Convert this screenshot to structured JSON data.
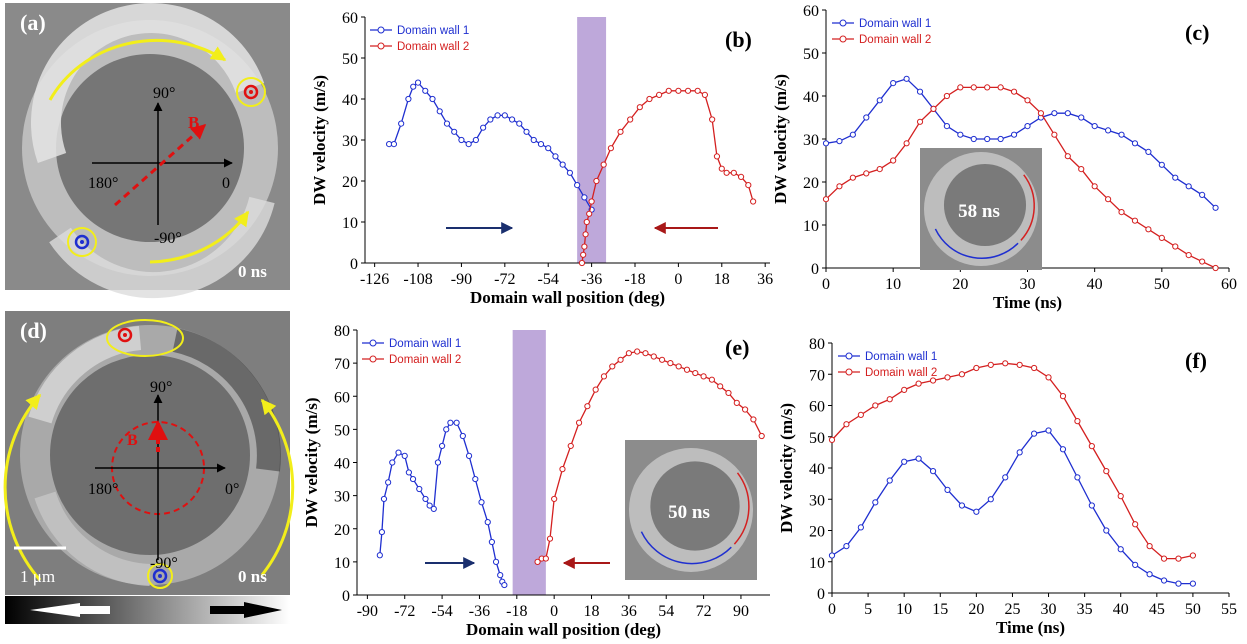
{
  "colors": {
    "dw1": "#1f2fd0",
    "dw2": "#d42020",
    "highlight": "#b79fd6",
    "arrow_right": "#1a2f6e",
    "arrow_left": "#a81818",
    "yellow": "#f2ee1a",
    "B_red": "#e01010"
  },
  "panel_a": {
    "label": "(a)",
    "time": "0 ns",
    "angle_90": "90°",
    "angle_0": "0",
    "angle_180": "180°",
    "angle_m90": "-90°",
    "field": "B",
    "icons": [
      "domain-wall-red-marker",
      "domain-wall-blue-marker",
      "yellow-motion-arrow"
    ]
  },
  "panel_d": {
    "label": "(d)",
    "time": "0 ns",
    "angle_90": "90°",
    "angle_0": "0°",
    "angle_180": "180°",
    "angle_m90": "-90°",
    "field": "B",
    "scale": "1 μm",
    "icons": [
      "domain-wall-red-marker",
      "domain-wall-blue-marker",
      "yellow-motion-arrow",
      "field-direction-arrows"
    ]
  },
  "chart_data": [
    {
      "id": "b",
      "label": "(b)",
      "type": "line",
      "xlabel": "Domain wall position (deg)",
      "ylabel": "DW velocity (m/s)",
      "xlim": [
        -130,
        38
      ],
      "ylim": [
        0,
        60
      ],
      "xticks": [
        -126,
        -108,
        -90,
        -72,
        -54,
        -36,
        -18,
        0,
        18,
        36
      ],
      "yticks": [
        0,
        10,
        20,
        30,
        40,
        50,
        60
      ],
      "highlight": [
        -42,
        -30
      ],
      "arrows": [
        "right",
        "left"
      ],
      "series": [
        {
          "name": "Domain wall 1",
          "color": "#1f2fd0",
          "x": [
            -120,
            -118,
            -115,
            -112,
            -110,
            -108,
            -105,
            -102,
            -99,
            -96,
            -93,
            -90,
            -87,
            -84,
            -81,
            -78,
            -75,
            -72,
            -69,
            -66,
            -63,
            -60,
            -57,
            -54,
            -51,
            -48,
            -45,
            -42,
            -39,
            -36
          ],
          "y": [
            29,
            29,
            34,
            40,
            43,
            44,
            42,
            40,
            37,
            34,
            32,
            30,
            29,
            30,
            33,
            35,
            36,
            36,
            35,
            34,
            32,
            30,
            29,
            28,
            26,
            24,
            22,
            19,
            16,
            13
          ]
        },
        {
          "name": "Domain wall 2",
          "color": "#d42020",
          "x": [
            -40,
            -39.5,
            -39,
            -38.5,
            -38,
            -37,
            -36,
            -34,
            -31,
            -28,
            -24,
            -20,
            -16,
            -12,
            -8,
            -4,
            0,
            4,
            8,
            11,
            14,
            16,
            18,
            20,
            23,
            26,
            29,
            31
          ],
          "y": [
            0,
            2,
            4,
            7,
            10,
            12,
            15,
            20,
            24,
            28,
            32,
            35,
            38,
            40,
            41,
            42,
            42,
            42,
            42,
            41,
            35,
            26,
            23,
            22,
            22,
            21,
            19,
            15
          ]
        }
      ]
    },
    {
      "id": "c",
      "label": "(c)",
      "type": "line",
      "xlabel": "Time (ns)",
      "ylabel": "DW velocity (m/s)",
      "xlim": [
        0,
        60
      ],
      "ylim": [
        0,
        60
      ],
      "xticks": [
        0,
        10,
        20,
        30,
        40,
        50,
        60
      ],
      "yticks": [
        0,
        10,
        20,
        30,
        40,
        50,
        60
      ],
      "inset": {
        "text": "58 ns"
      },
      "series": [
        {
          "name": "Domain wall 1",
          "color": "#1f2fd0",
          "x": [
            0,
            2,
            4,
            6,
            8,
            10,
            12,
            14,
            16,
            18,
            20,
            22,
            24,
            26,
            28,
            30,
            32,
            34,
            36,
            38,
            40,
            42,
            44,
            46,
            48,
            50,
            52,
            54,
            56,
            58
          ],
          "y": [
            29,
            29.5,
            31,
            35,
            39,
            43,
            44,
            41,
            37,
            33,
            31,
            30,
            30,
            30,
            31,
            33,
            35,
            36,
            36,
            35,
            33,
            32,
            31,
            29,
            27,
            24,
            21,
            19,
            17,
            14
          ]
        },
        {
          "name": "Domain wall 2",
          "color": "#d42020",
          "x": [
            0,
            2,
            4,
            6,
            8,
            10,
            12,
            14,
            16,
            18,
            20,
            22,
            24,
            26,
            28,
            30,
            32,
            34,
            36,
            38,
            40,
            42,
            44,
            46,
            48,
            50,
            52,
            54,
            56,
            58
          ],
          "y": [
            16,
            19,
            21,
            22,
            23,
            25,
            29,
            34,
            37,
            40,
            42,
            42,
            42,
            42,
            41,
            39,
            36,
            31,
            26,
            23,
            19,
            16,
            13,
            11,
            9,
            7,
            5,
            3,
            1.5,
            0
          ]
        }
      ]
    },
    {
      "id": "e",
      "label": "(e)",
      "type": "line",
      "xlabel": "Domain wall position (deg)",
      "ylabel": "DW velocity (m/s)",
      "xlim": [
        -95,
        104
      ],
      "ylim": [
        0,
        80
      ],
      "xticks": [
        -90,
        -72,
        -54,
        -36,
        -18,
        0,
        18,
        36,
        54,
        72,
        90
      ],
      "yticks": [
        0,
        10,
        20,
        30,
        40,
        50,
        60,
        70,
        80
      ],
      "highlight": [
        -20,
        -4
      ],
      "arrows": [
        "right",
        "left"
      ],
      "inset": {
        "text": "50 ns"
      },
      "series": [
        {
          "name": "Domain wall 1",
          "color": "#1f2fd0",
          "x": [
            -84,
            -83,
            -82,
            -80,
            -78,
            -75,
            -72,
            -70,
            -68,
            -65,
            -62,
            -60,
            -58,
            -56,
            -54,
            -52,
            -50,
            -47,
            -44,
            -41,
            -38,
            -35,
            -32,
            -30,
            -28,
            -26,
            -25,
            -24
          ],
          "y": [
            12,
            19,
            29,
            34,
            40,
            43,
            42,
            37,
            35,
            32,
            29,
            27,
            26,
            40,
            45,
            50,
            52,
            52,
            48,
            42,
            35,
            28,
            22,
            16,
            10,
            6,
            4,
            3
          ]
        },
        {
          "name": "Domain wall 2",
          "color": "#d42020",
          "x": [
            -8,
            -6,
            -4,
            -2,
            0,
            4,
            8,
            12,
            16,
            20,
            24,
            28,
            32,
            36,
            40,
            44,
            48,
            52,
            56,
            60,
            64,
            68,
            72,
            76,
            80,
            84,
            88,
            92,
            96,
            100
          ],
          "y": [
            10,
            11,
            11,
            17,
            29,
            38,
            45,
            52,
            57,
            62,
            66,
            69,
            71,
            73,
            73.5,
            73,
            72,
            71,
            70,
            69,
            68,
            67,
            66,
            65,
            63,
            61,
            58,
            56,
            53,
            48
          ]
        }
      ]
    },
    {
      "id": "f",
      "label": "(f)",
      "type": "line",
      "xlabel": "Time (ns)",
      "ylabel": "DW velocity (m/s)",
      "xlim": [
        0,
        55
      ],
      "ylim": [
        0,
        80
      ],
      "xticks": [
        0,
        5,
        10,
        15,
        20,
        25,
        30,
        35,
        40,
        45,
        50,
        55
      ],
      "yticks": [
        0,
        10,
        20,
        30,
        40,
        50,
        60,
        70,
        80
      ],
      "series": [
        {
          "name": "Domain wall 1",
          "color": "#1f2fd0",
          "x": [
            0,
            2,
            4,
            6,
            8,
            10,
            12,
            14,
            16,
            18,
            20,
            22,
            24,
            26,
            28,
            30,
            32,
            34,
            36,
            38,
            40,
            42,
            44,
            46,
            48,
            50
          ],
          "y": [
            12,
            15,
            21,
            29,
            36,
            42,
            43,
            39,
            33,
            28,
            26,
            30,
            37,
            45,
            51,
            52,
            46,
            37,
            28,
            20,
            14,
            9,
            6,
            4,
            3,
            3
          ]
        },
        {
          "name": "Domain wall 2",
          "color": "#d42020",
          "x": [
            0,
            2,
            4,
            6,
            8,
            10,
            12,
            14,
            16,
            18,
            20,
            22,
            24,
            26,
            28,
            30,
            32,
            34,
            36,
            38,
            40,
            42,
            44,
            46,
            48,
            50
          ],
          "y": [
            49,
            54,
            57,
            60,
            62,
            65,
            67,
            68,
            69,
            70,
            72,
            73,
            73.5,
            73,
            72,
            69,
            63,
            55,
            47,
            39,
            31,
            22,
            15,
            11,
            11,
            12
          ]
        }
      ]
    }
  ]
}
